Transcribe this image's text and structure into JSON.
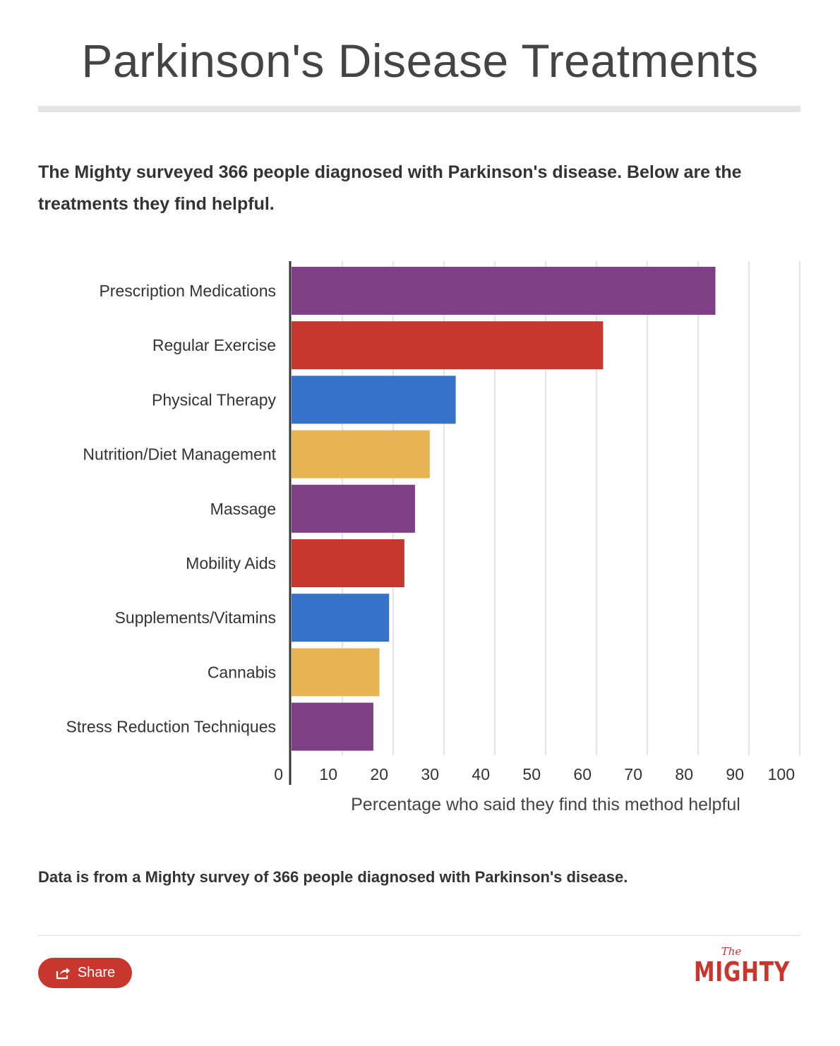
{
  "header": {
    "title": "Parkinson's Disease Treatments",
    "subtitle": "The Mighty surveyed 366 people diagnosed with Parkinson's disease. Below are the treatments they find helpful."
  },
  "chart_data": {
    "type": "bar",
    "orientation": "horizontal",
    "title": "",
    "xlabel": "Percentage who said they find this method helpful",
    "ylabel": "",
    "xlim": [
      0,
      100
    ],
    "ticks": [
      0,
      10,
      20,
      30,
      40,
      50,
      60,
      70,
      80,
      90,
      100
    ],
    "grid": true,
    "categories": [
      "Prescription Medications",
      "Regular Exercise",
      "Physical Therapy",
      "Nutrition/Diet Management",
      "Massage",
      "Mobility Aids",
      "Supplements/Vitamins",
      "Cannabis",
      "Stress Reduction Techniques"
    ],
    "values": [
      83.4,
      61.3,
      32.3,
      27.2,
      24.3,
      22.2,
      19.2,
      17.3,
      16.1
    ],
    "colors": [
      "#7f3f86",
      "#c8372d",
      "#3473c8",
      "#e8b352",
      "#7f3f86",
      "#c8372d",
      "#3473c8",
      "#e8b352",
      "#7f3f86"
    ]
  },
  "footer": {
    "note": "Data is from a Mighty survey of 366 people diagnosed with Parkinson's disease.",
    "share_label": "Share",
    "brand_the": "The",
    "brand_name": "MIGHTY"
  }
}
